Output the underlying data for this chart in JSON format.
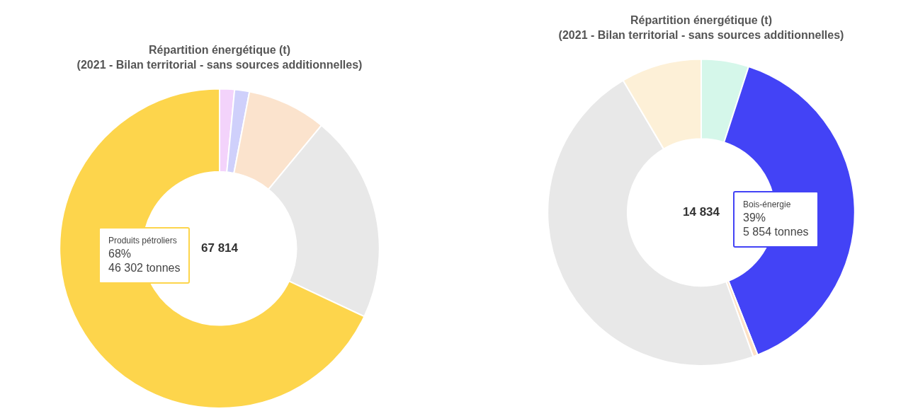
{
  "chart_data": [
    {
      "type": "donut",
      "title": "Répartition énergétique (t)",
      "subtitle": "(2021 - Bilan territorial - sans sources additionnelles)",
      "categories": [
        null,
        null,
        null,
        null,
        "Produits pétroliers"
      ],
      "values": [
        1.5,
        1.5,
        8,
        21,
        68
      ],
      "colors": [
        "#f3d3fb",
        "#cfd0fb",
        "#fbe3cd",
        "#e8e8e8",
        "#fdd54c"
      ],
      "annotations": [
        "67 814",
        {
          "text": "68%",
          "x": "Produits pétroliers"
        },
        {
          "text": "46 302 tonnes",
          "x": "Produits pétroliers"
        }
      ],
      "legend": false
    },
    {
      "type": "donut",
      "title": "Répartition énergétique (t)",
      "subtitle": "(2021 - Bilan territorial - sans sources additionnelles)",
      "categories": [
        null,
        "Bois-énergie",
        null,
        null,
        null
      ],
      "values": [
        5,
        39,
        0.5,
        47,
        8.5
      ],
      "colors": [
        "#d5f7ea",
        "#4343f6",
        "#fde1c6",
        "#e8e8e8",
        "#fdf0d7"
      ],
      "annotations": [
        "14 834",
        {
          "text": "39%",
          "x": "Bois-énergie"
        },
        {
          "text": "5 854 tonnes",
          "x": "Bois-énergie"
        }
      ],
      "legend": false
    }
  ]
}
